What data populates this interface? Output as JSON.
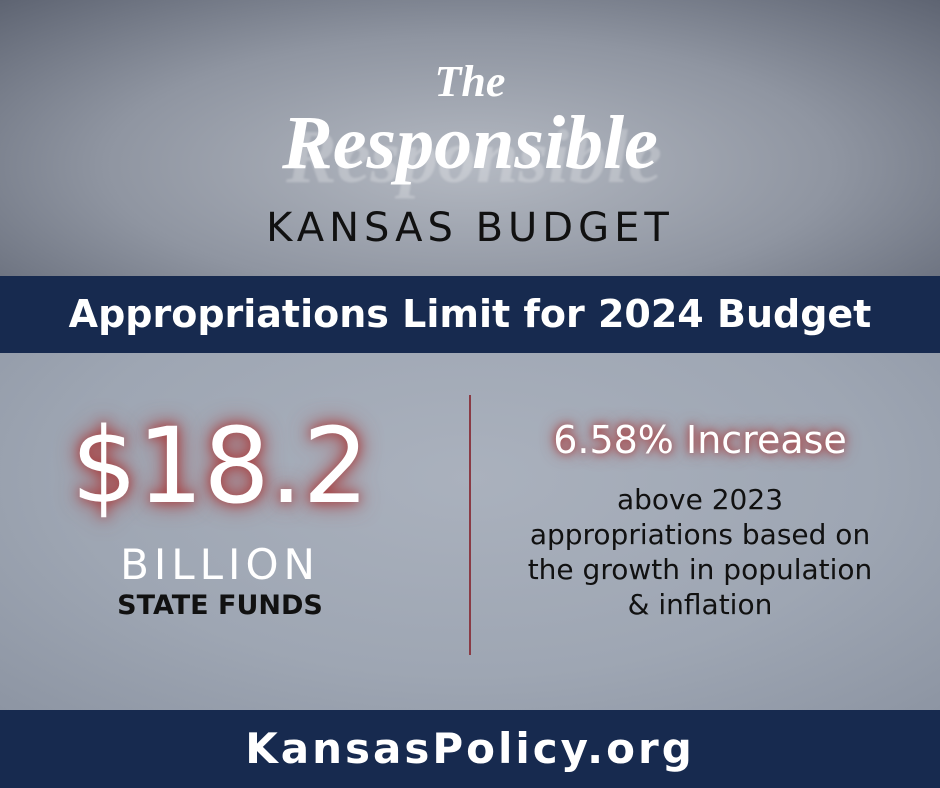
{
  "header": {
    "pre_title": "The",
    "title": "Responsible",
    "subtitle": "KANSAS BUDGET"
  },
  "banner": {
    "title": "Appropriations Limit for 2024 Budget"
  },
  "amount": {
    "value": "$18.2",
    "unit": "BILLION",
    "label": "STATE FUNDS"
  },
  "increase": {
    "headline": "6.58% Increase",
    "description": [
      "above 2023",
      "appropriations based on",
      "the growth in population",
      "& inflation"
    ]
  },
  "footer": {
    "url": "KansasPolicy.org"
  }
}
